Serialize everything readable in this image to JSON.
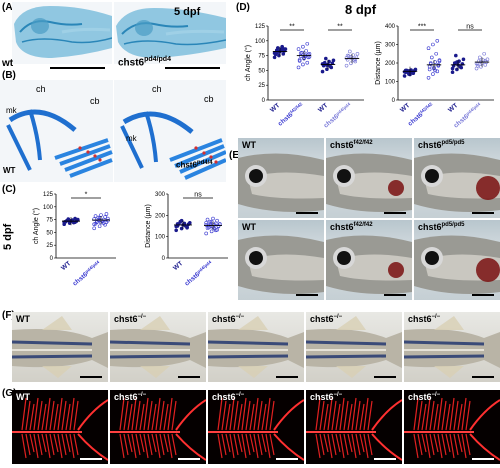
{
  "panels": {
    "A": {
      "letter": "(A)",
      "stage": "5 dpf",
      "label_left": "wt",
      "label_right_base": "chst6",
      "label_right_sup": "pd4/pd4"
    },
    "B": {
      "letter": "(B)",
      "label_left": "WT",
      "label_right_base": "chst6",
      "label_right_sup": "pd4/4",
      "ann": {
        "ch": "ch",
        "cb": "cb",
        "mk": "mk"
      }
    },
    "C": {
      "letter": "(C)",
      "stage": "5 dpf"
    },
    "D": {
      "letter": "(D)",
      "stage": "8 dpf"
    },
    "E": {
      "letter": "(E)",
      "labels": [
        "WT",
        "chst6",
        "chst6"
      ],
      "sups": [
        "",
        "f42/f42",
        "pd5/pd5"
      ]
    },
    "F": {
      "letter": "(F)",
      "labels": [
        "WT",
        "chst6",
        "chst6",
        "chst6",
        "chst6"
      ],
      "sups": [
        "",
        "−/−",
        "−/−",
        "−/−",
        "−/−"
      ]
    },
    "G": {
      "letter": "(G)",
      "labels": [
        "WT",
        "chst6",
        "chst6",
        "chst6",
        "chst6"
      ],
      "sups": [
        "",
        "−/−",
        "−/−",
        "−/−",
        "−/−"
      ]
    }
  },
  "chart_data": [
    {
      "id": "C-angle",
      "type": "scatter",
      "ylabel": "ch Angle (°)",
      "ylim": [
        0,
        125
      ],
      "yticks": [
        0,
        25,
        50,
        75,
        100,
        125
      ],
      "categories": [
        "WT",
        "chst6pd4/pd4"
      ],
      "cat_base": [
        "WT",
        "chst6"
      ],
      "cat_sup": [
        "",
        "pd4/pd4"
      ],
      "means": [
        72,
        74
      ],
      "series": [
        {
          "name": "WT",
          "values": [
            66,
            68,
            70,
            71,
            72,
            72,
            73,
            74,
            75,
            76,
            69,
            70,
            73,
            77,
            71
          ]
        },
        {
          "name": "chst6pd4/pd4",
          "values": [
            58,
            62,
            65,
            67,
            69,
            70,
            71,
            72,
            73,
            74,
            75,
            76,
            78,
            80,
            82,
            84,
            86,
            70,
            72,
            77,
            79,
            68,
            66,
            74
          ]
        }
      ],
      "significance": "*",
      "colors": [
        "#1a1a8c",
        "#3a3ad0"
      ]
    },
    {
      "id": "C-distance",
      "type": "scatter",
      "ylabel": "Distance (µm)",
      "ylim": [
        0,
        300
      ],
      "yticks": [
        0,
        100,
        200,
        300
      ],
      "categories": [
        "WT",
        "chst6pd4/pd4"
      ],
      "cat_base": [
        "WT",
        "chst6"
      ],
      "cat_sup": [
        "",
        "pd4/pd4"
      ],
      "means": [
        155,
        152
      ],
      "series": [
        {
          "name": "WT",
          "values": [
            130,
            138,
            145,
            150,
            155,
            158,
            160,
            162,
            165,
            170,
            150,
            148,
            175,
            142,
            160
          ]
        },
        {
          "name": "chst6pd4/pd4",
          "values": [
            115,
            125,
            132,
            140,
            145,
            150,
            152,
            155,
            158,
            160,
            162,
            165,
            170,
            175,
            180,
            185,
            148,
            143,
            138,
            160,
            168,
            130,
            155,
            150
          ]
        }
      ],
      "significance": "ns",
      "colors": [
        "#1a1a8c",
        "#3a3ad0"
      ]
    },
    {
      "id": "D-angle",
      "type": "scatter",
      "ylabel": "ch Angle (°)",
      "ylim": [
        0,
        125
      ],
      "yticks": [
        0,
        25,
        50,
        75,
        100,
        125
      ],
      "categories": [
        "WT",
        "chst6f42/f42",
        "WT",
        "chst6pd4/pd4"
      ],
      "cat_base": [
        "WT",
        "chst6",
        "WT",
        "chst6"
      ],
      "cat_sup": [
        "",
        "f42/f42",
        "",
        "pd4/pd4"
      ],
      "means": [
        82,
        75,
        60,
        70
      ],
      "series": [
        {
          "name": "WT",
          "values": [
            72,
            75,
            78,
            80,
            82,
            83,
            84,
            85,
            86,
            88,
            90,
            79,
            81,
            84,
            77,
            83,
            86,
            80
          ]
        },
        {
          "name": "chst6f42/f42",
          "values": [
            55,
            60,
            63,
            66,
            70,
            72,
            74,
            76,
            78,
            80,
            83,
            86,
            90,
            95,
            68,
            71,
            77,
            79,
            74,
            73
          ]
        },
        {
          "name": "WT",
          "values": [
            48,
            52,
            55,
            58,
            60,
            62,
            63,
            65,
            67,
            70,
            57,
            61,
            59
          ]
        },
        {
          "name": "chst6pd4/pd4",
          "values": [
            58,
            62,
            65,
            68,
            70,
            72,
            74,
            76,
            78,
            82,
            67,
            71,
            73,
            69,
            75
          ]
        }
      ],
      "significance": [
        "**",
        "**"
      ],
      "colors": [
        "#1a1a8c",
        "#3a3ad0",
        "#1a1a8c",
        "#7a7ad8"
      ]
    },
    {
      "id": "D-distance",
      "type": "scatter",
      "ylabel": "Distance (µm)",
      "ylim": [
        0,
        400
      ],
      "yticks": [
        0,
        100,
        200,
        300,
        400
      ],
      "categories": [
        "WT",
        "chst6f42/f42",
        "WT",
        "chst6pd4/pd4"
      ],
      "cat_base": [
        "WT",
        "chst6",
        "WT",
        "chst6"
      ],
      "cat_sup": [
        "",
        "f42/f42",
        "",
        "pd4/pd4"
      ],
      "means": [
        155,
        190,
        190,
        205
      ],
      "series": [
        {
          "name": "WT",
          "values": [
            130,
            140,
            145,
            150,
            155,
            158,
            160,
            162,
            165,
            150,
            148,
            152,
            157,
            145,
            160,
            138
          ]
        },
        {
          "name": "chst6f42/f42",
          "values": [
            120,
            140,
            155,
            165,
            175,
            185,
            195,
            205,
            215,
            230,
            250,
            280,
            300,
            320,
            180,
            170,
            190,
            200,
            160,
            210
          ]
        },
        {
          "name": "WT",
          "values": [
            150,
            165,
            175,
            185,
            190,
            195,
            200,
            210,
            220,
            240,
            180,
            170,
            205
          ]
        },
        {
          "name": "chst6pd4/pd4",
          "values": [
            170,
            180,
            190,
            195,
            200,
            205,
            210,
            215,
            220,
            230,
            250,
            198,
            208,
            212,
            185
          ]
        }
      ],
      "significance": [
        "***",
        "ns"
      ],
      "colors": [
        "#1a1a8c",
        "#3a3ad0",
        "#1a1a8c",
        "#7a7ad8"
      ]
    }
  ]
}
